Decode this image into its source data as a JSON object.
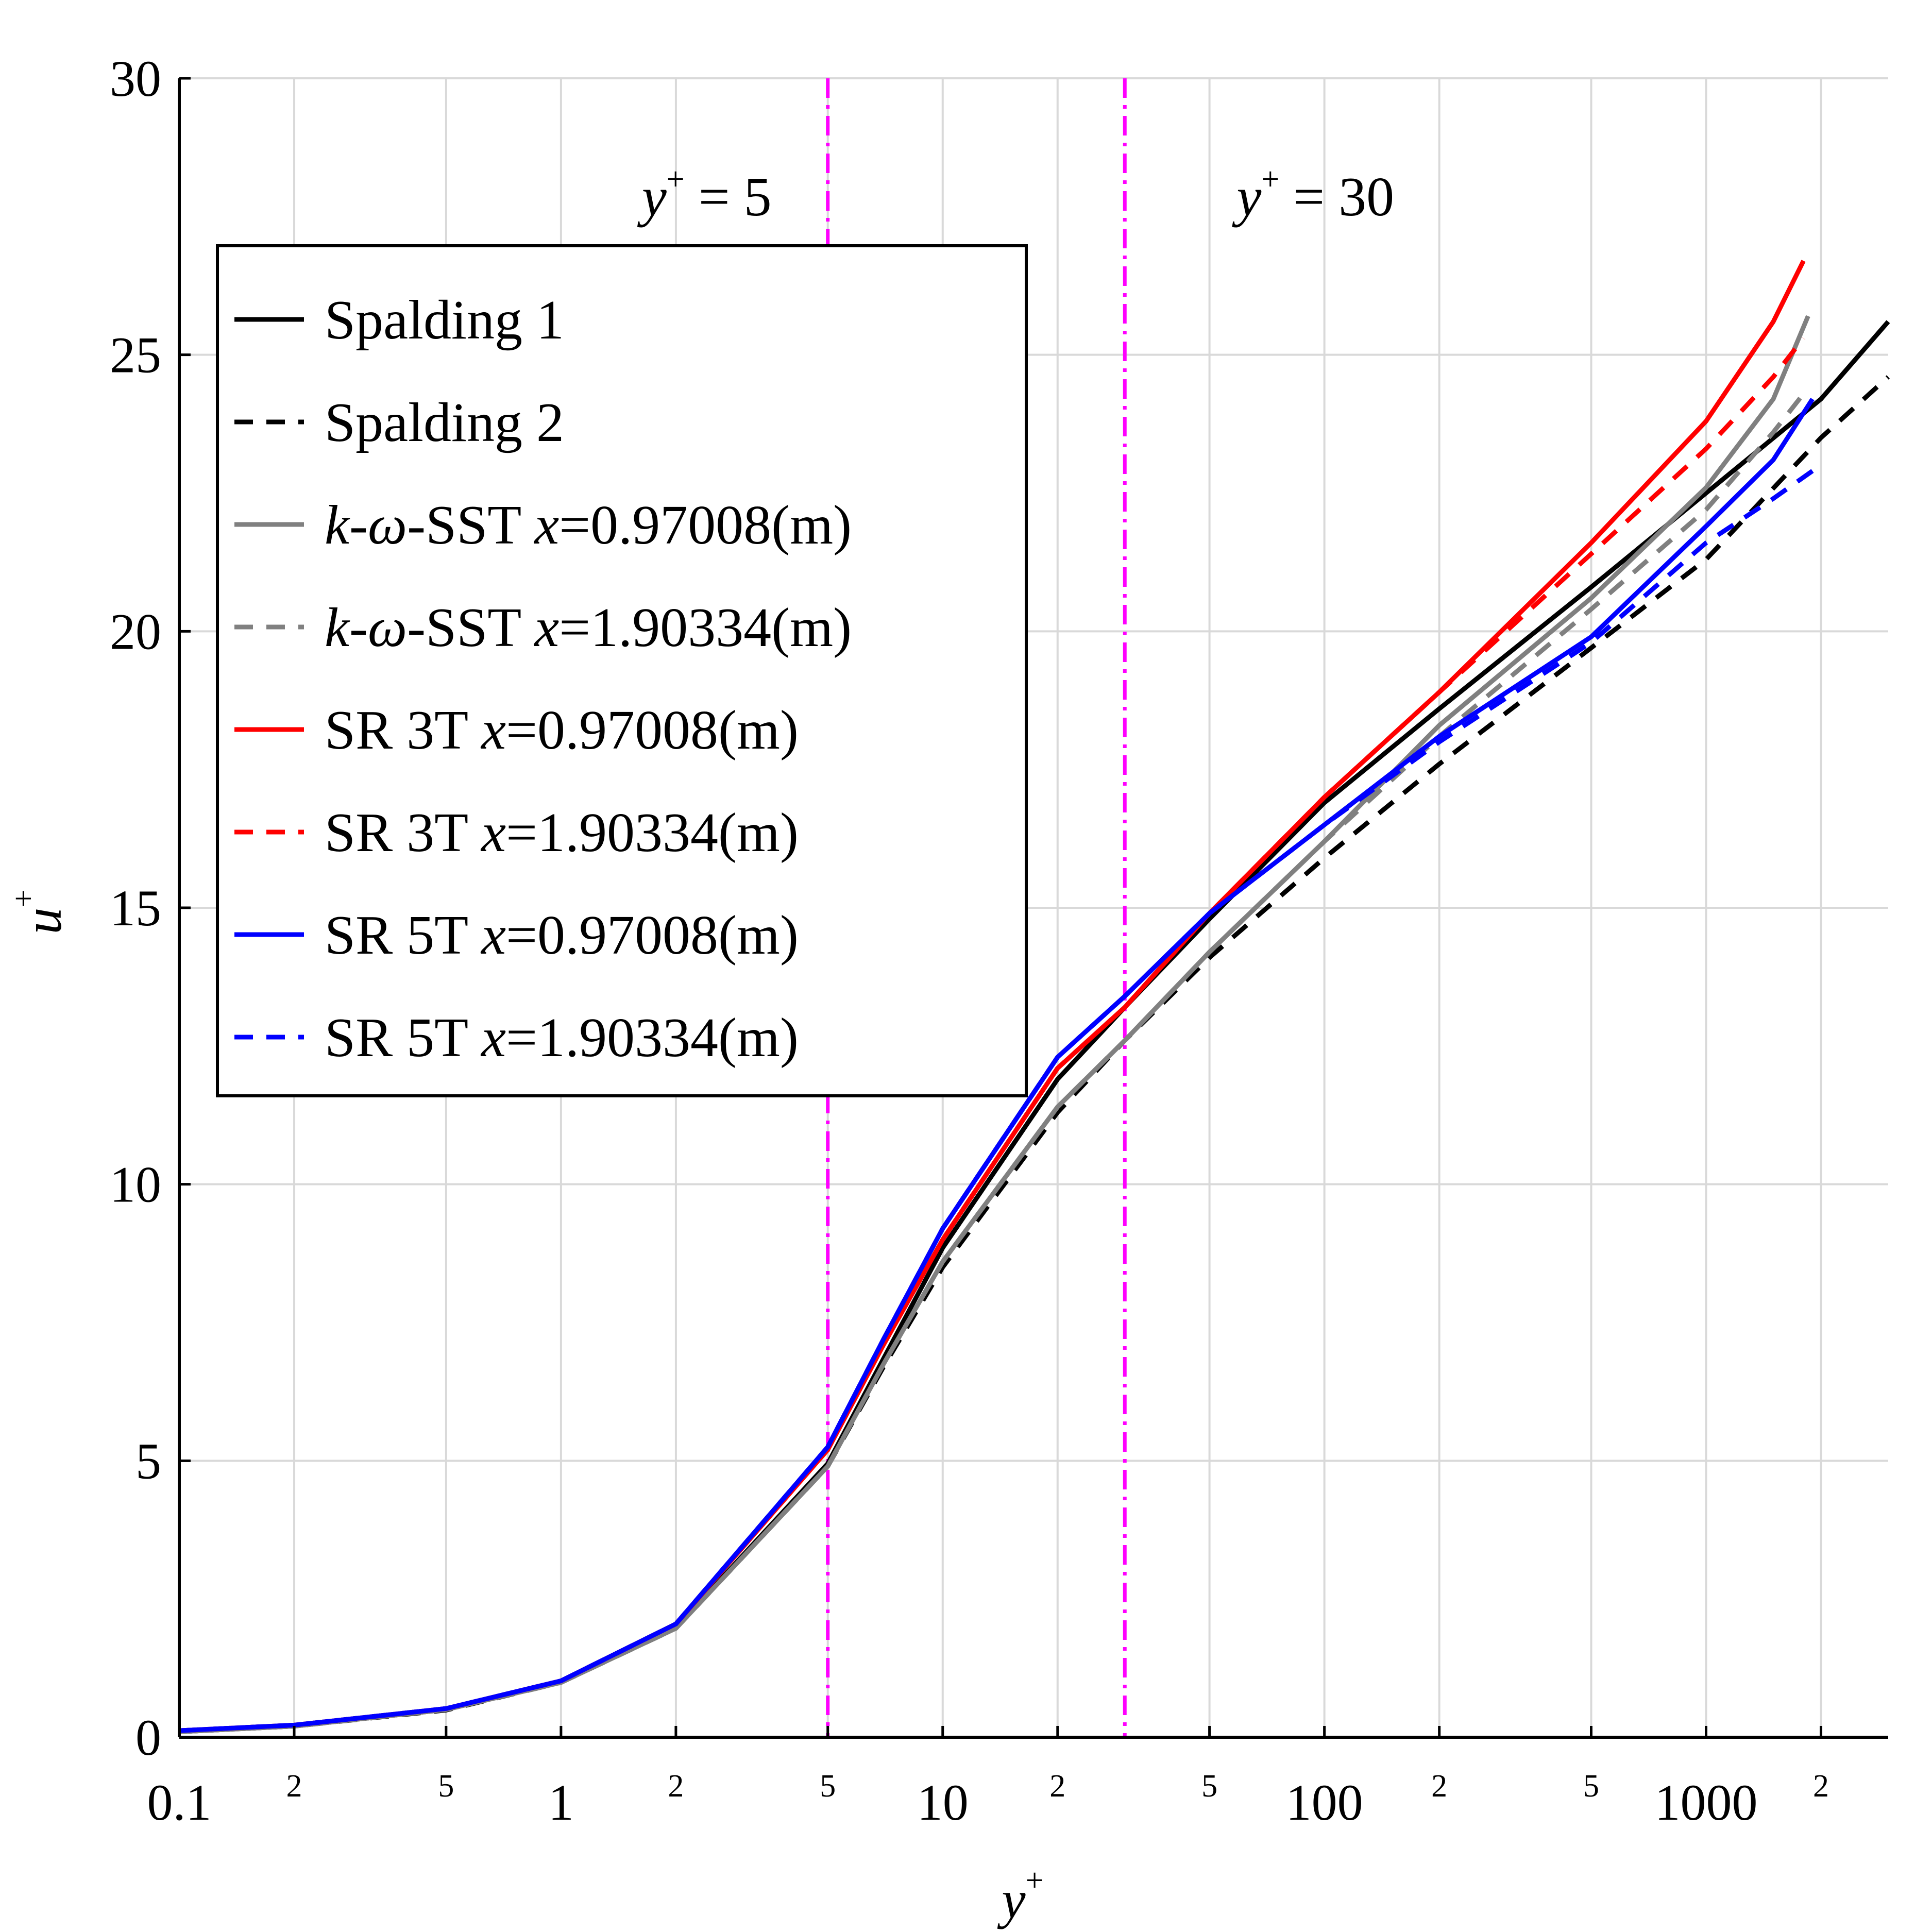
{
  "chart_data": {
    "type": "line",
    "xscale": "log",
    "xlim": [
      0.1,
      3000
    ],
    "ylim": [
      0,
      30
    ],
    "xlabel": "y+",
    "ylabel": "u+",
    "grid": true,
    "legend_position": "top-left",
    "x_major_ticks": [
      {
        "value": 0.1,
        "label": "0.1"
      },
      {
        "value": 1,
        "label": "1"
      },
      {
        "value": 10,
        "label": "10"
      },
      {
        "value": 100,
        "label": "100"
      },
      {
        "value": 1000,
        "label": "1000"
      }
    ],
    "x_minor_ticks": [
      {
        "value": 0.2,
        "label": "2"
      },
      {
        "value": 0.5,
        "label": "5"
      },
      {
        "value": 2,
        "label": "2"
      },
      {
        "value": 5,
        "label": "5"
      },
      {
        "value": 20,
        "label": "2"
      },
      {
        "value": 50,
        "label": "5"
      },
      {
        "value": 200,
        "label": "2"
      },
      {
        "value": 500,
        "label": "5"
      },
      {
        "value": 2000,
        "label": "2"
      }
    ],
    "y_ticks": [
      {
        "value": 0,
        "label": "0"
      },
      {
        "value": 5,
        "label": "5"
      },
      {
        "value": 10,
        "label": "10"
      },
      {
        "value": 15,
        "label": "15"
      },
      {
        "value": 20,
        "label": "20"
      },
      {
        "value": 25,
        "label": "25"
      },
      {
        "value": 30,
        "label": "30"
      }
    ],
    "reference_lines": [
      {
        "x": 5,
        "label": "y+ = 5",
        "color": "#ff00ff"
      },
      {
        "x": 30,
        "label": "y+ = 30",
        "color": "#ff00ff"
      }
    ],
    "series": [
      {
        "name": "Spalding 1",
        "color": "#000000",
        "dash": "solid",
        "x": [
          0.1,
          0.2,
          0.5,
          1,
          2,
          5,
          7,
          10,
          20,
          30,
          50,
          100,
          200,
          500,
          1000,
          2000,
          3000
        ],
        "y": [
          0.1,
          0.2,
          0.5,
          1.0,
          1.98,
          4.95,
          6.85,
          8.85,
          11.9,
          13.2,
          14.8,
          16.9,
          18.6,
          20.8,
          22.5,
          24.2,
          25.6
        ]
      },
      {
        "name": "Spalding 2",
        "color": "#000000",
        "dash": "dashed",
        "x": [
          0.1,
          0.2,
          0.5,
          1,
          2,
          5,
          7,
          10,
          20,
          30,
          50,
          100,
          200,
          500,
          1000,
          2000,
          3000
        ],
        "y": [
          0.1,
          0.2,
          0.49,
          0.99,
          1.97,
          4.9,
          6.7,
          8.5,
          11.3,
          12.6,
          14.1,
          15.9,
          17.6,
          19.7,
          21.3,
          23.5,
          24.6
        ]
      },
      {
        "name": "k-ω-SST x=0.97008(m)",
        "color": "#808080",
        "dash": "solid",
        "x": [
          0.1,
          0.2,
          0.5,
          1,
          2,
          5,
          7,
          10,
          20,
          30,
          50,
          100,
          200,
          500,
          1000,
          1500,
          1850
        ],
        "y": [
          0.1,
          0.2,
          0.5,
          0.99,
          1.97,
          4.9,
          6.75,
          8.6,
          11.4,
          12.6,
          14.2,
          16.2,
          18.3,
          20.6,
          22.6,
          24.2,
          25.7
        ]
      },
      {
        "name": "k-ω-SST x=1.90334(m)",
        "color": "#808080",
        "dash": "dashed",
        "x": [
          0.1,
          0.2,
          0.5,
          1,
          2,
          5,
          7,
          10,
          20,
          30,
          50,
          100,
          200,
          500,
          1000,
          1500,
          1850
        ],
        "y": [
          0.1,
          0.2,
          0.5,
          0.99,
          1.97,
          4.9,
          6.75,
          8.6,
          11.4,
          12.6,
          14.2,
          16.2,
          18.1,
          20.4,
          22.2,
          23.6,
          24.4
        ]
      },
      {
        "name": "SR 3T x=0.97008(m)",
        "color": "#ff0000",
        "dash": "solid",
        "x": [
          0.1,
          0.2,
          0.5,
          1,
          2,
          5,
          7,
          10,
          20,
          30,
          50,
          100,
          200,
          500,
          1000,
          1500,
          1800
        ],
        "y": [
          0.12,
          0.22,
          0.52,
          1.02,
          2.05,
          5.2,
          7.1,
          9.0,
          12.1,
          13.2,
          14.9,
          17.0,
          18.9,
          21.6,
          23.8,
          25.6,
          26.7
        ]
      },
      {
        "name": "SR 3T x=1.90334(m)",
        "color": "#ff0000",
        "dash": "dashed",
        "x": [
          0.1,
          0.2,
          0.5,
          1,
          2,
          5,
          7,
          10,
          20,
          30,
          50,
          100,
          200,
          500,
          1000,
          1500,
          1800
        ],
        "y": [
          0.12,
          0.22,
          0.52,
          1.02,
          2.05,
          5.2,
          7.1,
          9.0,
          12.1,
          13.2,
          14.9,
          17.0,
          18.9,
          21.4,
          23.3,
          24.6,
          25.3
        ]
      },
      {
        "name": "SR 5T x=0.97008(m)",
        "color": "#0000ff",
        "dash": "solid",
        "x": [
          0.1,
          0.2,
          0.5,
          1,
          2,
          5,
          7,
          10,
          20,
          30,
          50,
          100,
          200,
          500,
          1000,
          1500,
          1900
        ],
        "y": [
          0.12,
          0.22,
          0.52,
          1.02,
          2.05,
          5.25,
          7.2,
          9.2,
          12.3,
          13.4,
          14.9,
          16.5,
          18.1,
          19.9,
          21.9,
          23.1,
          24.2
        ]
      },
      {
        "name": "SR 5T x=1.90334(m)",
        "color": "#0000ff",
        "dash": "dashed",
        "x": [
          0.1,
          0.2,
          0.5,
          1,
          2,
          5,
          7,
          10,
          20,
          30,
          50,
          100,
          200,
          500,
          1000,
          1500,
          1900
        ],
        "y": [
          0.12,
          0.22,
          0.52,
          1.02,
          2.05,
          5.25,
          7.2,
          9.2,
          12.3,
          13.4,
          14.9,
          16.5,
          18.0,
          19.8,
          21.6,
          22.4,
          22.9
        ]
      }
    ],
    "legend": [
      {
        "name": "Spalding 1",
        "label": "Spalding 1",
        "prefix": "",
        "var": "",
        "suffix": ""
      },
      {
        "name": "Spalding 2",
        "label": "Spalding 2",
        "prefix": "",
        "var": "",
        "suffix": ""
      },
      {
        "name": "k-ω-SST x=0.97008(m)",
        "label": "k-ω",
        "prefix": "-SST ",
        "var": "x",
        "suffix": "=0.97008(m)"
      },
      {
        "name": "k-ω-SST x=1.90334(m)",
        "label": "k-ω",
        "prefix": "-SST ",
        "var": "x",
        "suffix": "=1.90334(m)"
      },
      {
        "name": "SR 3T x=0.97008(m)",
        "label": "SR 3T ",
        "prefix": "",
        "var": "x",
        "suffix": "=0.97008(m)"
      },
      {
        "name": "SR 3T x=1.90334(m)",
        "label": "SR 3T ",
        "prefix": "",
        "var": "x",
        "suffix": "=1.90334(m)"
      },
      {
        "name": "SR 5T x=0.97008(m)",
        "label": "SR 5T ",
        "prefix": "",
        "var": "x",
        "suffix": "=0.97008(m)"
      },
      {
        "name": "SR 5T x=1.90334(m)",
        "label": "SR 5T ",
        "prefix": "",
        "var": "x",
        "suffix": "=1.90334(m)"
      }
    ]
  }
}
